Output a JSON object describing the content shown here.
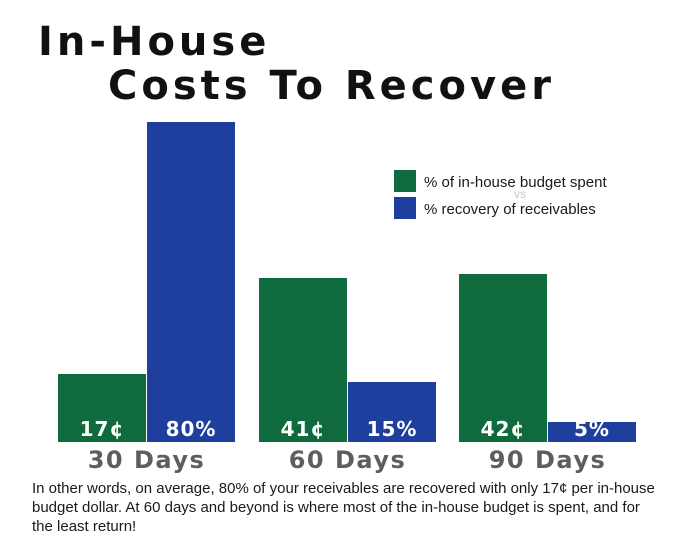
{
  "title_line1": "In-House",
  "title_line2": "Costs To Recover",
  "caption": "In other words, on average, 80% of your receivables are recovered with only 17¢ per in-house budget dollar. At 60 days and beyond is where most of the in-house budget is spent, and for the least return!",
  "colors": {
    "budget": "#0f6b3d",
    "recovery": "#1f3f9e",
    "category_text": "#5e5e5e",
    "bar_label": "#ffffff",
    "vs_text": "#c8c8c8"
  },
  "legend": {
    "placement": "top-right",
    "vs_text": "vs"
  },
  "chart_data": {
    "type": "bar",
    "title": "In-House Costs To Recover",
    "categories": [
      "30 Days",
      "60 Days",
      "90 Days"
    ],
    "series": [
      {
        "name": "% of in-house budget spent",
        "values": [
          17,
          41,
          42
        ],
        "labels": [
          "17¢",
          "41¢",
          "42¢"
        ]
      },
      {
        "name": "% recovery of receivables",
        "values": [
          80,
          15,
          5
        ],
        "labels": [
          "80%",
          "15%",
          "5%"
        ]
      }
    ],
    "xlabel": "",
    "ylabel": "",
    "ylim": [
      0,
      80
    ],
    "grid": false
  }
}
